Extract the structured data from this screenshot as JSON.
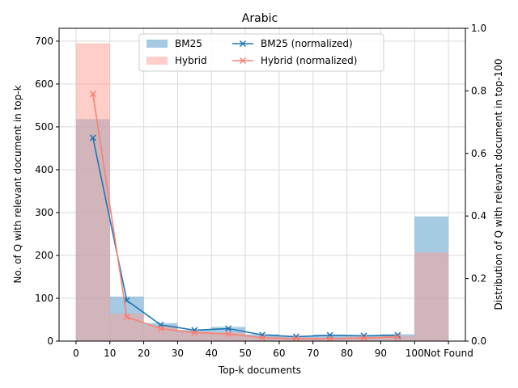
{
  "chart_data": {
    "type": "bar",
    "title": "Arabic",
    "xlabel": "Top-k documents",
    "ylabel": "No. of Q with relevant document in top-k",
    "ylabel_right": "Distribution of Q with relevant document in top-100",
    "x_tick_labels": [
      "0",
      "10",
      "20",
      "30",
      "40",
      "50",
      "60",
      "70",
      "80",
      "90",
      "100",
      "Not Found"
    ],
    "xlim": [
      -5,
      115
    ],
    "ylim": [
      0,
      730
    ],
    "y_ticks": [
      0,
      100,
      200,
      300,
      400,
      500,
      600,
      700
    ],
    "ylim_right": [
      0,
      1.0
    ],
    "y_ticks_right": [
      0.0,
      0.2,
      0.4,
      0.6,
      0.8,
      1.0
    ],
    "y_tick_labels_right": [
      "0.0",
      "0.2",
      "0.4",
      "0.6",
      "0.8",
      "1.0"
    ],
    "grid": true,
    "legend_position": "top-center",
    "bin_edges": [
      0,
      10,
      20,
      30,
      40,
      50,
      60,
      70,
      80,
      90,
      100,
      110
    ],
    "bar_series": [
      {
        "name": "BM25",
        "color": "#7fb3d5",
        "opacity": 0.7,
        "values": [
          518,
          104,
          42,
          26,
          33,
          16,
          11,
          15,
          14,
          16,
          291
        ]
      },
      {
        "name": "Hybrid",
        "color": "#ff9e94",
        "opacity": 0.5,
        "values": [
          695,
          64,
          36,
          22,
          20,
          10,
          8,
          8,
          10,
          12,
          207
        ]
      }
    ],
    "line_series": [
      {
        "name": "BM25 (normalized)",
        "color": "#1f77b4",
        "marker": "x",
        "x": [
          5,
          15,
          25,
          35,
          45,
          55,
          65,
          75,
          85,
          95
        ],
        "y": [
          0.65,
          0.13,
          0.052,
          0.035,
          0.04,
          0.02,
          0.014,
          0.019,
          0.017,
          0.019
        ]
      },
      {
        "name": "Hybrid (normalized)",
        "color": "#fa8072",
        "marker": "x",
        "x": [
          5,
          15,
          25,
          35,
          45,
          55,
          65,
          75,
          85,
          95
        ],
        "y": [
          0.79,
          0.077,
          0.04,
          0.027,
          0.023,
          0.011,
          0.008,
          0.008,
          0.01,
          0.013
        ]
      }
    ]
  }
}
